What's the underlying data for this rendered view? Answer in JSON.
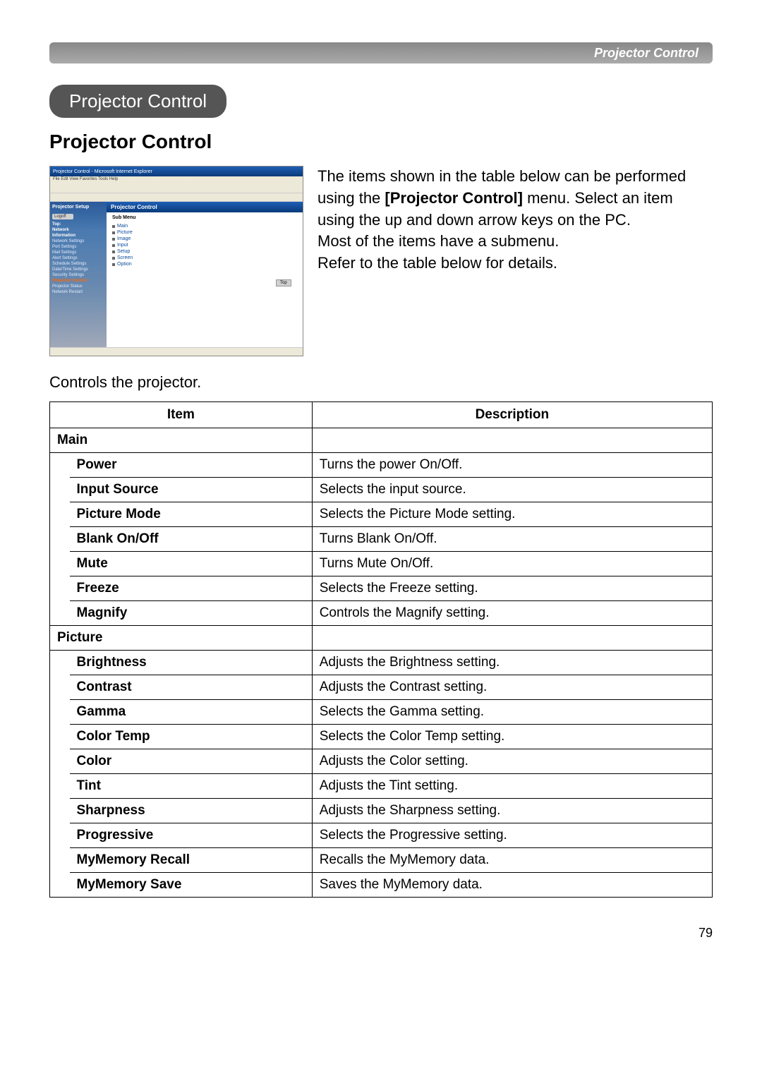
{
  "header": {
    "title": "Projector Control"
  },
  "title_pill": "Projector Control",
  "section_heading": "Projector Control",
  "screenshot": {
    "window_title": "Projector Control - Microsoft Internet Explorer",
    "menubar": "File  Edit  View  Favorites  Tools  Help",
    "sidebar_title": "Projector Setup",
    "logoff": "Logoff",
    "sidebar_links": [
      "Top:",
      "Network",
      "Information",
      "Network Settings",
      "Port Settings",
      "Mail Settings",
      "Alert Settings",
      "Schedule Settings",
      "Date/Time Settings",
      "Security Settings",
      "Projector Control",
      "Projector Status",
      "Network Restart"
    ],
    "content_header": "Projector Control",
    "submenu_label": "Sub Menu",
    "submenu_items": [
      "Main",
      "Picture",
      "Image",
      "Input",
      "Setup",
      "Screen",
      "Option"
    ],
    "top_btn": "Top"
  },
  "body_text_1": "The items shown in the table below can be performed using the ",
  "body_text_bold": "[Projector Control]",
  "body_text_2": " menu. Select an item using the up and down arrow keys on the PC.",
  "body_text_3": "Most of the items have a submenu.",
  "body_text_4": "Refer to the table below for details.",
  "controls_text": "Controls the projector.",
  "table": {
    "head_item": "Item",
    "head_desc": "Description",
    "sections": [
      {
        "name": "Main",
        "rows": [
          {
            "item": "Power",
            "desc": "Turns the power On/Off."
          },
          {
            "item": "Input Source",
            "desc": "Selects the input source."
          },
          {
            "item": "Picture Mode",
            "desc": "Selects the Picture Mode setting."
          },
          {
            "item": "Blank On/Off",
            "desc": "Turns Blank On/Off."
          },
          {
            "item": "Mute",
            "desc": "Turns Mute On/Off."
          },
          {
            "item": "Freeze",
            "desc": "Selects the Freeze setting."
          },
          {
            "item": "Magnify",
            "desc": "Controls the Magnify setting."
          }
        ]
      },
      {
        "name": "Picture",
        "rows": [
          {
            "item": "Brightness",
            "desc": "Adjusts the Brightness setting."
          },
          {
            "item": "Contrast",
            "desc": "Adjusts the Contrast setting."
          },
          {
            "item": "Gamma",
            "desc": "Selects the Gamma setting."
          },
          {
            "item": "Color Temp",
            "desc": "Selects the Color Temp setting."
          },
          {
            "item": "Color",
            "desc": "Adjusts the Color setting."
          },
          {
            "item": "Tint",
            "desc": "Adjusts the Tint setting."
          },
          {
            "item": "Sharpness",
            "desc": "Adjusts the Sharpness setting."
          },
          {
            "item": "Progressive",
            "desc": "Selects the Progressive setting."
          },
          {
            "item": "MyMemory Recall",
            "desc": "Recalls the MyMemory data."
          },
          {
            "item": "MyMemory Save",
            "desc": "Saves the MyMemory data."
          }
        ]
      }
    ]
  },
  "page_number": "79"
}
